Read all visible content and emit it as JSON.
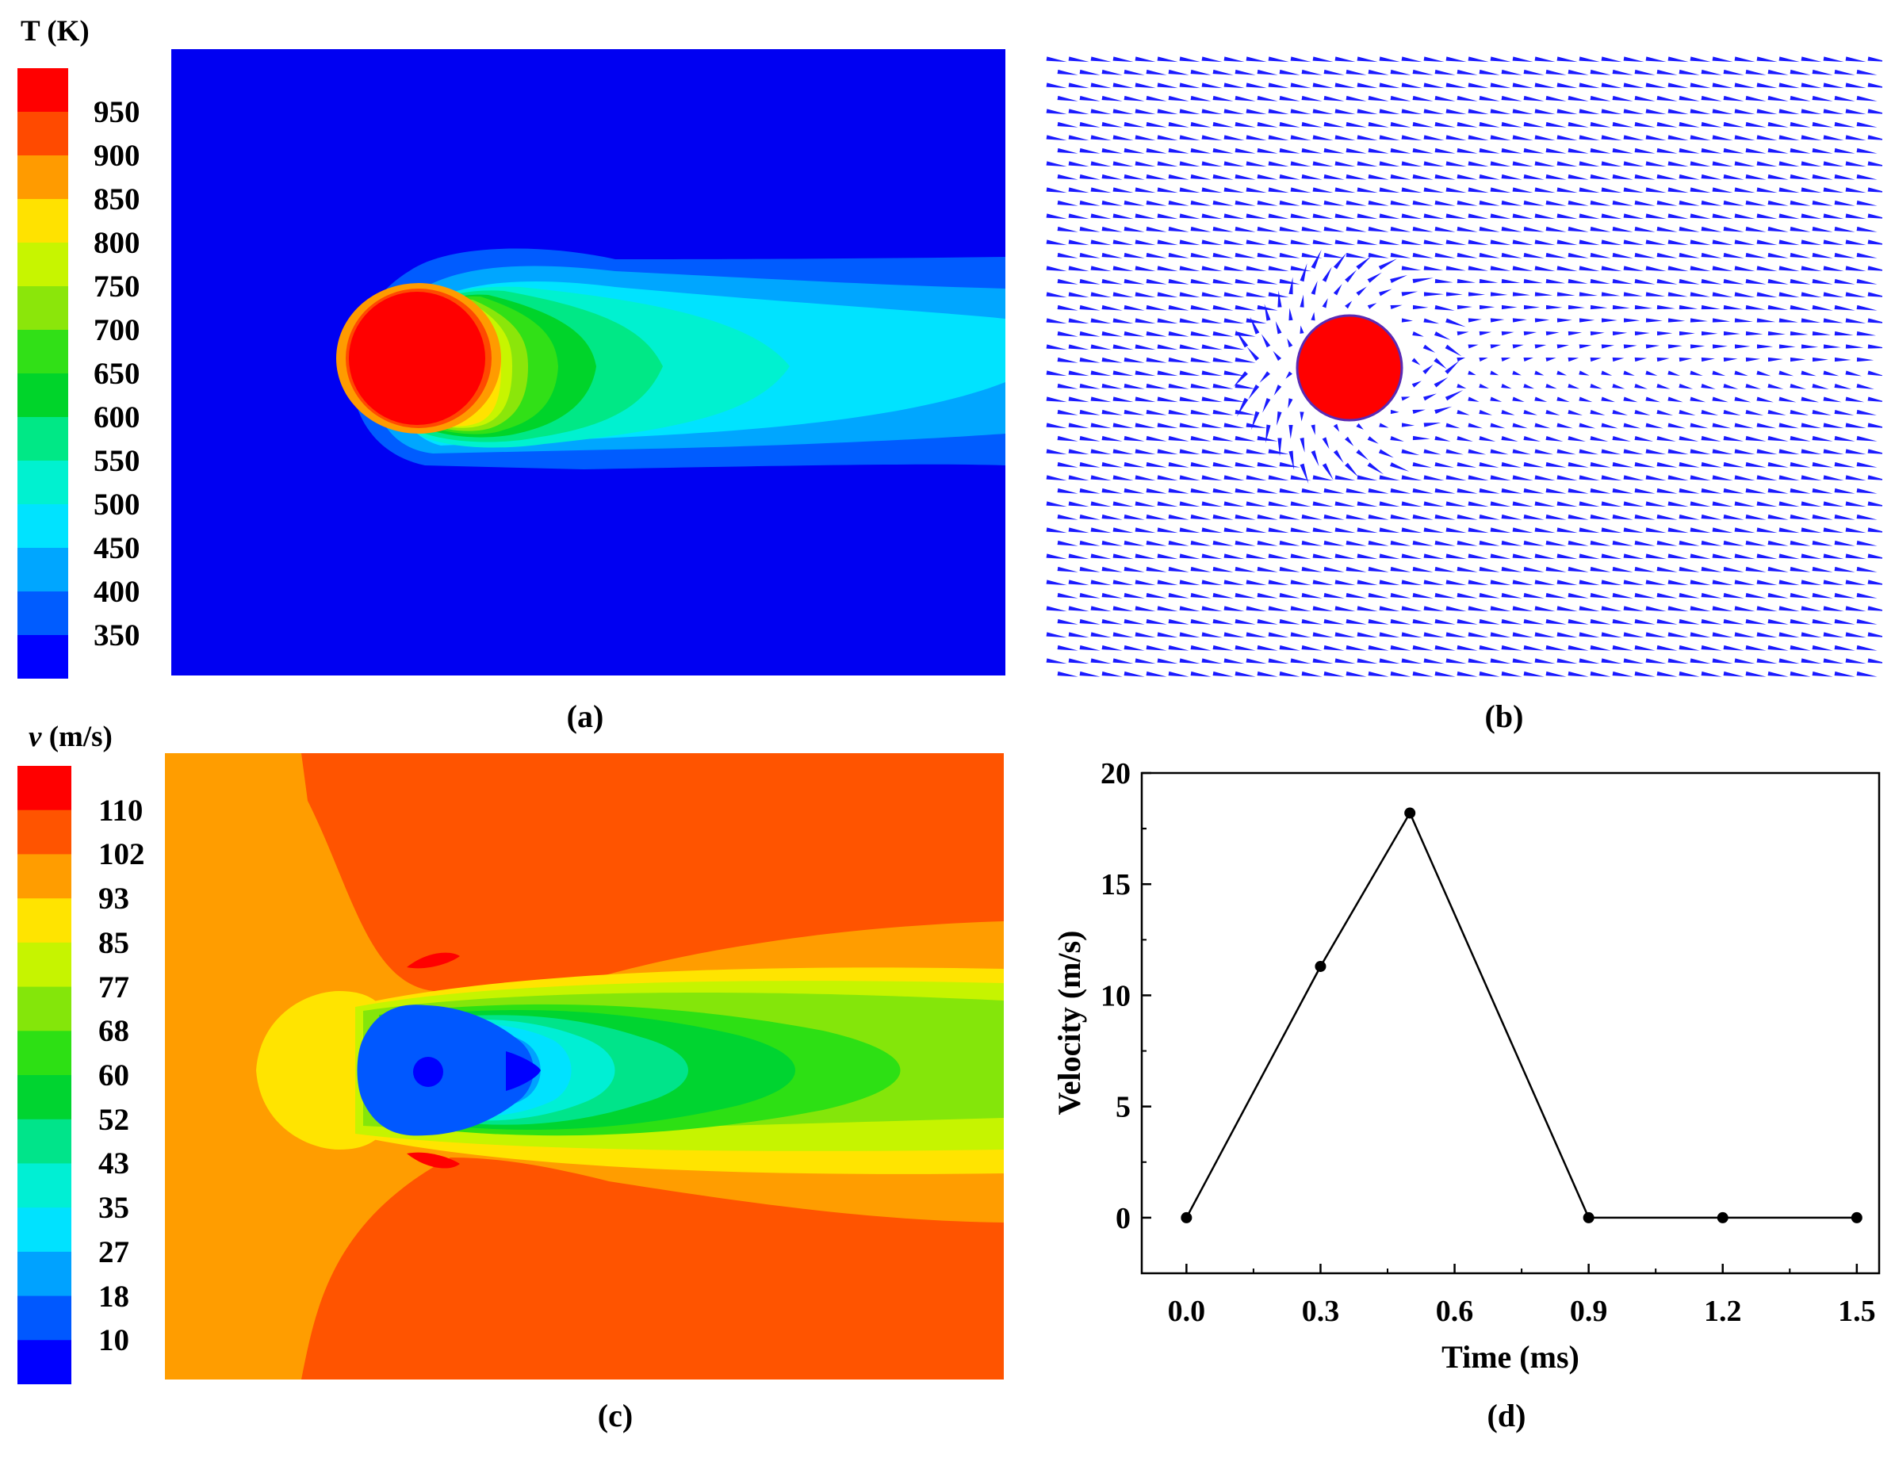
{
  "panels": {
    "a": {
      "label": "(a)",
      "legend": {
        "title_symbol": "T",
        "title_unit": " (K)",
        "labels": [
          "950",
          "900",
          "850",
          "800",
          "750",
          "700",
          "650",
          "600",
          "550",
          "500",
          "450",
          "400",
          "350"
        ],
        "colors": [
          "#ff0000",
          "#ff4a00",
          "#ff9b00",
          "#ffe200",
          "#c7f500",
          "#8be60a",
          "#31e017",
          "#00d42a",
          "#00e886",
          "#00f1d0",
          "#00e3ff",
          "#00a6ff",
          "#005cff",
          "#0000ff"
        ]
      }
    },
    "b": {
      "label": "(b)",
      "colors": {
        "particle": "#ff0000",
        "arrows": "#1a1aff"
      }
    },
    "c": {
      "label": "(c)",
      "legend": {
        "title_symbol": "v",
        "title_unit": " (m/s)",
        "labels": [
          "110",
          "102",
          "93",
          "85",
          "77",
          "68",
          "60",
          "52",
          "43",
          "35",
          "27",
          "18",
          "10"
        ],
        "colors": [
          "#ff0000",
          "#ff5400",
          "#ff9d00",
          "#ffe400",
          "#c6f400",
          "#84e60a",
          "#2de014",
          "#00d430",
          "#00e48a",
          "#00efd4",
          "#00e2ff",
          "#00a2ff",
          "#0058ff",
          "#0000ff"
        ]
      }
    },
    "d": {
      "label": "(d)"
    }
  },
  "chart_data": {
    "type": "line",
    "title": "",
    "xlabel": "Time (ms)",
    "ylabel": "Velocity (m/s)",
    "xlim": [
      -0.1,
      1.55
    ],
    "ylim": [
      -2.5,
      20
    ],
    "xticks": [
      0.0,
      0.3,
      0.6,
      0.9,
      1.2,
      1.5
    ],
    "xtick_labels": [
      "0.0",
      "0.3",
      "0.6",
      "0.9",
      "1.2",
      "1.5"
    ],
    "yticks": [
      0,
      5,
      10,
      15,
      20
    ],
    "ytick_labels": [
      "0",
      "5",
      "10",
      "15",
      "20"
    ],
    "x": [
      0.0,
      0.3,
      0.5,
      0.9,
      1.2,
      1.5
    ],
    "y": [
      0.0,
      11.3,
      18.2,
      0.0,
      0.0,
      0.0
    ],
    "grid": false,
    "legend": "none",
    "colors": {
      "line": "#000000",
      "marker": "#000000"
    }
  }
}
